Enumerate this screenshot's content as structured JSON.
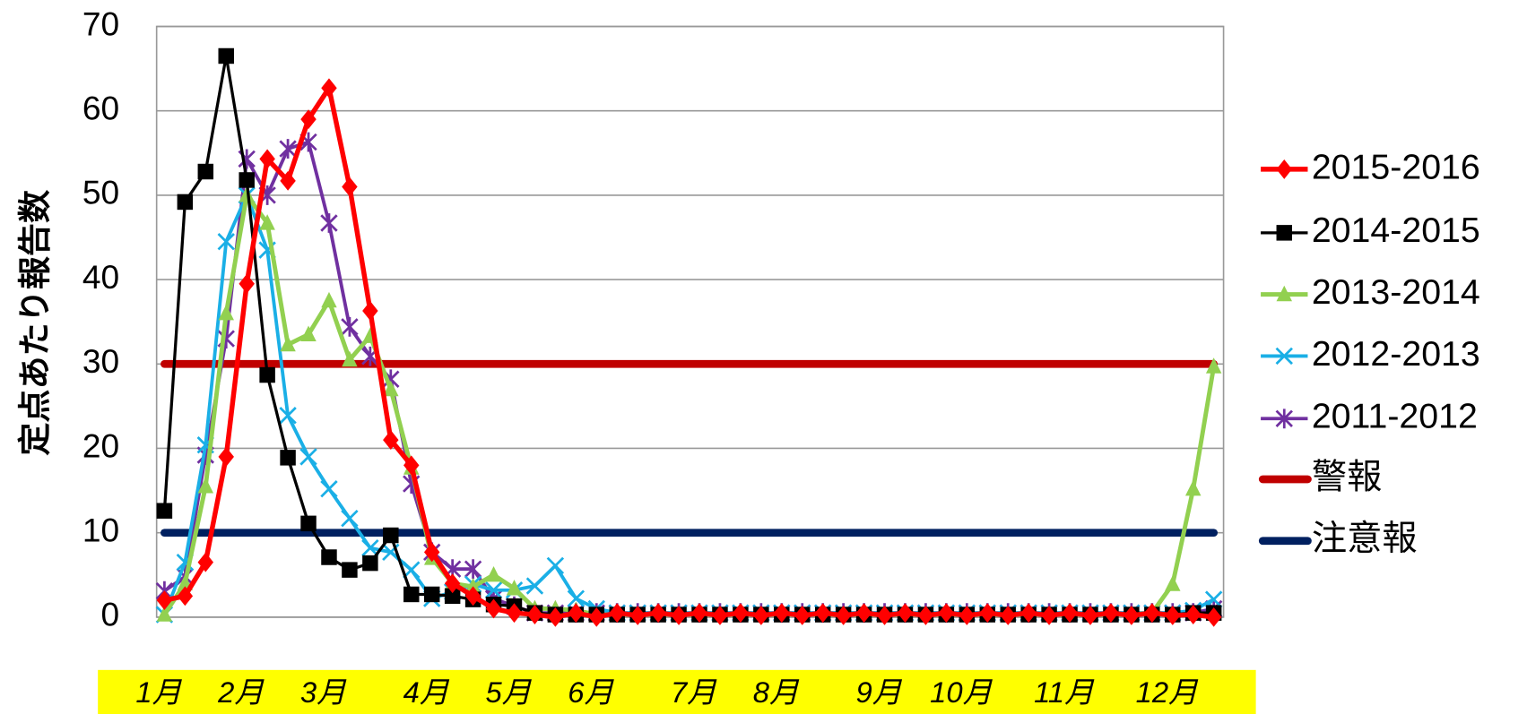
{
  "chart_data": {
    "type": "line",
    "y_label": "定点あたり報告数",
    "categories": [
      "1月",
      null,
      null,
      null,
      "2月",
      null,
      null,
      null,
      "3月",
      null,
      null,
      null,
      null,
      "4月",
      null,
      null,
      null,
      "5月",
      null,
      null,
      null,
      "6月",
      null,
      null,
      null,
      null,
      "7月",
      null,
      null,
      null,
      "8月",
      null,
      null,
      null,
      null,
      "9月",
      null,
      null,
      null,
      "10月",
      null,
      null,
      null,
      null,
      "11月",
      null,
      null,
      null,
      null,
      "12月",
      null,
      null
    ],
    "ylim": [
      0,
      70
    ],
    "yticks": [
      0,
      10,
      20,
      30,
      40,
      50,
      60,
      70
    ],
    "grid": true,
    "legend": "right",
    "series": [
      {
        "name": "2015-2016",
        "color": "#ff0000",
        "marker": "diamond",
        "values": [
          2,
          2.5,
          6.5,
          19,
          39.5,
          54.3,
          51.7,
          59,
          62.7,
          51,
          36.3,
          21,
          18,
          7.7,
          4,
          2.5,
          1,
          0.5,
          0.3,
          0,
          0.5,
          0,
          0.5,
          0.2,
          0.5,
          0.2,
          0.5,
          0.2,
          0.5,
          0.2,
          0.5,
          0.2,
          0.5,
          0.2,
          0.5,
          0.2,
          0.5,
          0.2,
          0.5,
          0.2,
          0.5,
          0.2,
          0.5,
          0.2,
          0.5,
          0.2,
          0.5,
          0.2,
          0.5,
          0.2,
          0.3,
          0
        ]
      },
      {
        "name": "2014-2015",
        "color": "#000000",
        "marker": "square",
        "values": [
          12.6,
          49.2,
          52.8,
          66.5,
          51.8,
          28.7,
          18.9,
          11.1,
          7.1,
          5.6,
          6.4,
          9.7,
          2.7,
          2.7,
          2.5,
          2.1,
          1.5,
          1.3,
          0.5,
          0.3,
          0.3,
          0.3,
          0.3,
          0.3,
          0.3,
          0.3,
          0.3,
          0.3,
          0.3,
          0.3,
          0.3,
          0.3,
          0.3,
          0.3,
          0.3,
          0.3,
          0.3,
          0.3,
          0.3,
          0.3,
          0.3,
          0.3,
          0.3,
          0.3,
          0.3,
          0.3,
          0.3,
          0.3,
          0.3,
          0.3,
          0.5,
          0.5
        ]
      },
      {
        "name": "2013-2014",
        "color": "#92d050",
        "marker": "triangle",
        "values": [
          0.3,
          4,
          15.5,
          36,
          50,
          46.7,
          32.3,
          33.5,
          37.5,
          30.5,
          33.3,
          27,
          17.7,
          7,
          4,
          3.6,
          5,
          3.4,
          1,
          1,
          0.8,
          0.3,
          0.3,
          0.3,
          0.3,
          0.3,
          0.3,
          0.3,
          0.3,
          0.3,
          0.3,
          0.3,
          0.3,
          0.3,
          0.3,
          0.3,
          0.3,
          0.3,
          0.3,
          0.3,
          0.3,
          0.3,
          0.3,
          0.3,
          0.3,
          0.3,
          0.3,
          0.3,
          0.5,
          3.9,
          15.2,
          29.7
        ]
      },
      {
        "name": "2012-2013",
        "color": "#1aafe6",
        "marker": "x",
        "values": [
          0.3,
          6.5,
          20.4,
          44.5,
          50,
          43.5,
          23.9,
          19,
          15.2,
          11.7,
          8.2,
          7.7,
          5.6,
          2.2,
          3,
          3.9,
          3.2,
          3.2,
          3.7,
          6.1,
          2.2,
          1,
          0.5,
          0.5,
          0.5,
          0.5,
          0.5,
          0.5,
          0.5,
          0.5,
          0.5,
          0.5,
          0.5,
          0.5,
          0.5,
          0.5,
          0.5,
          0.5,
          0.5,
          0.5,
          0.5,
          0.5,
          0.5,
          0.5,
          0.5,
          0.5,
          0.5,
          0.5,
          0.5,
          0.5,
          0.8,
          2.1
        ]
      },
      {
        "name": "2011-2012",
        "color": "#7030a0",
        "marker": "star",
        "values": [
          3.1,
          4.8,
          19.2,
          33,
          54.3,
          50,
          55.5,
          56.3,
          46.7,
          34.4,
          30.9,
          28.2,
          15.8,
          7.7,
          5.7,
          5.7,
          2.2,
          1.3,
          0.5,
          0.5,
          0.5,
          0.5,
          0.5,
          0.5,
          0.5,
          0.5,
          0.5,
          0.5,
          0.5,
          0.5,
          0.5,
          0.5,
          0.5,
          0.5,
          0.5,
          0.5,
          0.5,
          0.5,
          0.5,
          0.5,
          0.5,
          0.5,
          0.5,
          0.5,
          0.5,
          0.5,
          0.5,
          0.5,
          0.5,
          0.5,
          0.5,
          1
        ]
      }
    ],
    "reference_lines": [
      {
        "name": "警報",
        "color": "#c00000",
        "value": 30
      },
      {
        "name": "注意報",
        "color": "#002060",
        "value": 10
      }
    ]
  }
}
